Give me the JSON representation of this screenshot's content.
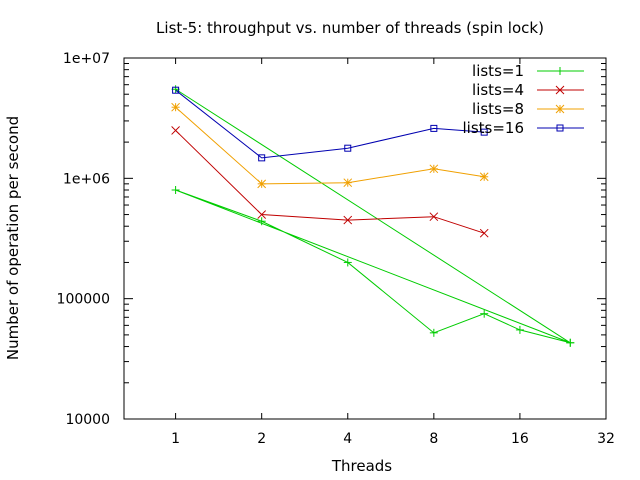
{
  "chart_data": {
    "type": "line",
    "title": "List-5: throughput vs. number of threads (spin lock)",
    "xlabel": "Threads",
    "ylabel": "Number of operation per second",
    "x_scale": "log2",
    "y_scale": "log10",
    "xlim": [
      0.66,
      32
    ],
    "ylim": [
      10000,
      10000000
    ],
    "x_ticks": [
      1,
      2,
      4,
      8,
      16,
      32
    ],
    "x_tick_labels": [
      "1",
      "2",
      "4",
      "8",
      "16",
      "32"
    ],
    "y_ticks": [
      10000,
      100000,
      1000000,
      10000000
    ],
    "y_tick_labels": [
      "10000",
      "100000",
      "1e+06",
      "1e+07"
    ],
    "legend_position": "top-right",
    "grid": false,
    "series": [
      {
        "name": "lists=1",
        "color": "#00cc00",
        "marker": "plus",
        "points": [
          [
            1,
            5500000
          ],
          [
            24,
            43000
          ],
          [
            1,
            800000
          ],
          [
            2,
            440000
          ],
          [
            4,
            200000
          ],
          [
            8,
            52000
          ],
          [
            12,
            75000
          ],
          [
            16,
            55000
          ],
          [
            24,
            43000
          ]
        ]
      },
      {
        "name": "lists=4",
        "color": "#c00000",
        "marker": "cross",
        "points": [
          [
            1,
            2500000
          ],
          [
            2,
            500000
          ],
          [
            4,
            450000
          ],
          [
            8,
            480000
          ],
          [
            12,
            350000
          ]
        ]
      },
      {
        "name": "lists=8",
        "color": "#f0a000",
        "marker": "star",
        "points": [
          [
            1,
            3900000
          ],
          [
            2,
            900000
          ],
          [
            4,
            920000
          ],
          [
            8,
            1200000
          ],
          [
            12,
            1030000
          ]
        ]
      },
      {
        "name": "lists=16",
        "color": "#0000b0",
        "marker": "square",
        "points": [
          [
            1,
            5400000
          ],
          [
            2,
            1480000
          ],
          [
            4,
            1780000
          ],
          [
            8,
            2600000
          ],
          [
            12,
            2420000
          ]
        ]
      }
    ]
  }
}
